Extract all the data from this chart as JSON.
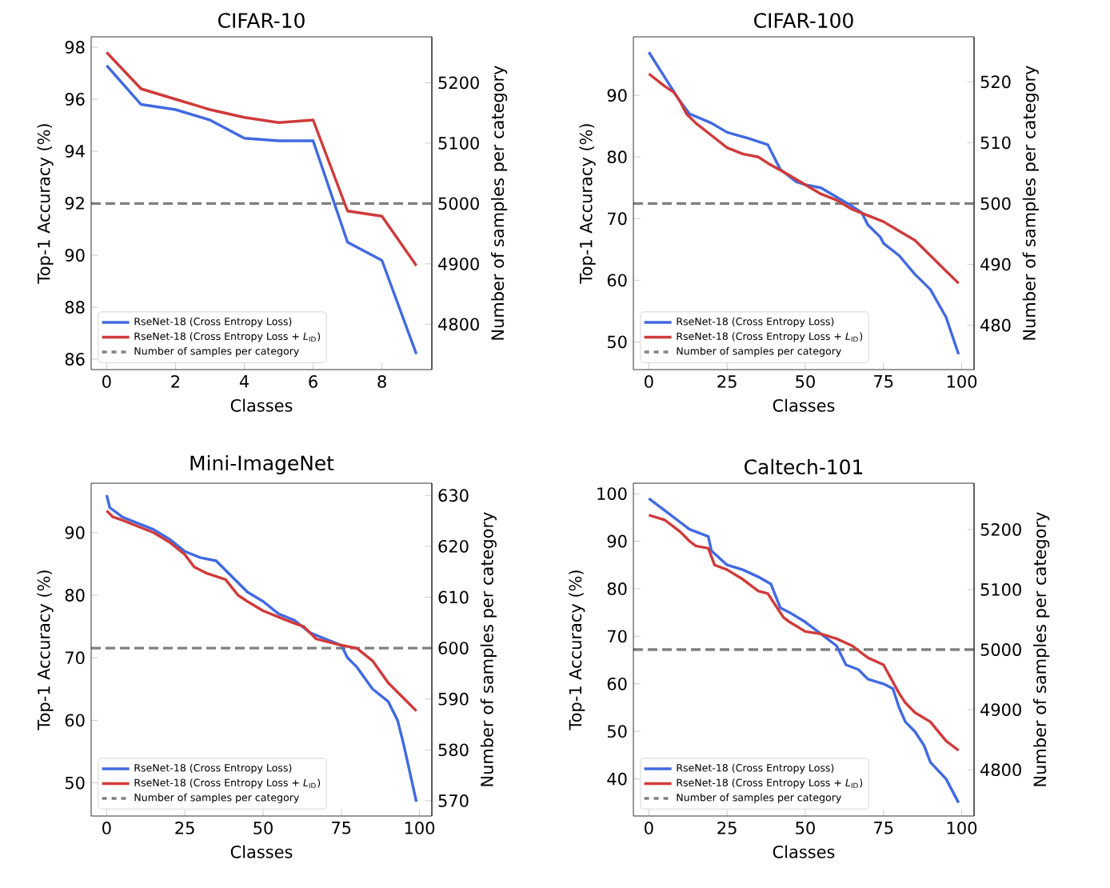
{
  "chart_data": [
    {
      "type": "line",
      "title": "CIFAR-10",
      "xlabel": "Classes",
      "ylabel": "Top-1 Accuracy (%)",
      "y2label": "Number of samples per category",
      "legend": "bottom left",
      "line_style": "solid",
      "xlim": [
        -0.45,
        9.45
      ],
      "xticks": [
        0,
        2,
        4,
        6,
        8
      ],
      "ylim": [
        85.6,
        98.4
      ],
      "yticks": [
        86,
        88,
        90,
        92,
        94,
        96,
        98
      ],
      "y2lim": [
        4725,
        5276
      ],
      "y2ticks": [
        4800,
        4900,
        5000,
        5100,
        5200
      ],
      "series": [
        {
          "name": "RseNet-18 (Cross Entropy Loss)",
          "color": "#4169e1",
          "x": [
            0,
            1,
            2,
            3,
            4,
            5,
            6,
            7,
            8,
            9
          ],
          "values": [
            97.3,
            95.8,
            95.6,
            95.2,
            94.5,
            94.4,
            94.4,
            90.5,
            89.8,
            86.2
          ]
        },
        {
          "name": "RseNet-18 (Cross Entropy Loss + *L*$_{ID}$)",
          "color": "#d03a3a",
          "x": [
            0,
            1,
            2,
            3,
            4,
            5,
            6,
            7,
            8,
            9
          ],
          "values": [
            97.8,
            96.4,
            96.0,
            95.6,
            95.3,
            95.1,
            95.2,
            91.7,
            91.5,
            89.6
          ]
        }
      ],
      "ref_lines": [
        {
          "axis": "y2",
          "value": 5000,
          "label": "Number of samples per category",
          "color": "#808080",
          "line_style": "dashed"
        }
      ]
    },
    {
      "type": "line",
      "title": "CIFAR-100",
      "xlabel": "Classes",
      "ylabel": "Top-1 Accuracy (%)",
      "y2label": "Number of samples per category",
      "legend": "bottom left",
      "line_style": "solid",
      "xlim": [
        -4.95,
        103.95
      ],
      "xticks": [
        0,
        25,
        50,
        75,
        100
      ],
      "ylim": [
        45.5,
        99.5
      ],
      "yticks": [
        50,
        60,
        70,
        80,
        90
      ],
      "y2lim": [
        472.7,
        527.4
      ],
      "y2ticks": [
        480,
        490,
        500,
        510,
        520
      ],
      "series": [
        {
          "name": "RseNet-18 (Cross Entropy Loss)",
          "color": "#4169e1",
          "x": [
            0,
            5,
            10,
            13,
            20,
            25,
            32,
            38,
            42,
            47,
            50,
            55,
            60,
            65,
            68,
            70,
            74,
            75,
            80,
            85,
            90,
            95,
            99
          ],
          "values": [
            97,
            93,
            89,
            87,
            85.5,
            84,
            83,
            82,
            78,
            76,
            75.5,
            75,
            73.5,
            72,
            71,
            69,
            67,
            66,
            64,
            61,
            58.5,
            54,
            48
          ]
        },
        {
          "name": "RseNet-18 (Cross Entropy Loss + *L*$_{ID}$)",
          "color": "#d03a3a",
          "x": [
            0,
            5,
            8,
            10,
            12,
            15,
            20,
            25,
            30,
            35,
            38,
            45,
            50,
            55,
            60,
            65,
            70,
            75,
            80,
            85,
            88,
            92,
            95,
            99
          ],
          "values": [
            93.5,
            91.5,
            90.5,
            89,
            87,
            85.5,
            83.5,
            81.5,
            80.5,
            80,
            79,
            77,
            75.5,
            74,
            73,
            71.5,
            70.5,
            69.5,
            68,
            66.5,
            65,
            63,
            61.5,
            59.5
          ]
        }
      ],
      "ref_lines": [
        {
          "axis": "y2",
          "value": 500,
          "label": "Number of samples per category",
          "color": "#808080",
          "line_style": "dashed"
        }
      ]
    },
    {
      "type": "line",
      "title": "Mini-ImageNet",
      "xlabel": "Classes",
      "ylabel": "Top-1 Accuracy (%)",
      "y2label": "Number of samples per category",
      "legend": "bottom left",
      "line_style": "solid",
      "xlim": [
        -4.95,
        103.95
      ],
      "xticks": [
        0,
        25,
        50,
        75,
        100
      ],
      "ylim": [
        44.7,
        97.9
      ],
      "yticks": [
        50,
        60,
        70,
        80,
        90
      ],
      "y2lim": [
        567,
        632.4
      ],
      "y2ticks": [
        570,
        580,
        590,
        600,
        610,
        620,
        630
      ],
      "series": [
        {
          "name": "RseNet-18 (Cross Entropy Loss)",
          "color": "#4169e1",
          "x": [
            0,
            1,
            5,
            10,
            15,
            20,
            25,
            30,
            35,
            40,
            45,
            50,
            55,
            60,
            65,
            70,
            75,
            77,
            80,
            85,
            90,
            93,
            95,
            99
          ],
          "values": [
            96,
            94,
            92.5,
            91.5,
            90.5,
            89,
            87,
            86,
            85.5,
            83,
            80.5,
            79,
            77,
            76,
            74,
            73,
            72,
            70,
            68.5,
            65,
            63,
            60,
            56,
            47
          ]
        },
        {
          "name": "RseNet-18 (Cross Entropy Loss + *L*$_{ID}$)",
          "color": "#d03a3a",
          "x": [
            0,
            2,
            5,
            10,
            15,
            20,
            25,
            28,
            32,
            38,
            42,
            45,
            50,
            55,
            60,
            63,
            67,
            75,
            80,
            85,
            90,
            95,
            99
          ],
          "values": [
            93.5,
            92.5,
            92,
            91,
            90,
            88.5,
            86.5,
            84.5,
            83.5,
            82.5,
            80,
            79,
            77.5,
            76.5,
            75.5,
            75,
            73,
            72,
            71.5,
            69.5,
            66,
            63.5,
            61.5
          ]
        }
      ],
      "ref_lines": [
        {
          "axis": "y2",
          "value": 600,
          "label": "Number of samples per category",
          "color": "#808080",
          "line_style": "dashed"
        }
      ]
    },
    {
      "type": "line",
      "title": "Caltech-101",
      "xlabel": "Classes",
      "ylabel": "Top-1 Accuracy (%)",
      "y2label": "Number of samples per category",
      "legend": "bottom left",
      "line_style": "solid",
      "xlim": [
        -4.95,
        103.95
      ],
      "xticks": [
        0,
        25,
        50,
        75,
        100
      ],
      "ylim": [
        32.2,
        102.2
      ],
      "yticks": [
        40,
        50,
        60,
        70,
        80,
        90,
        100
      ],
      "y2lim": [
        4723,
        5277
      ],
      "y2ticks": [
        4800,
        4900,
        5000,
        5100,
        5200
      ],
      "series": [
        {
          "name": "RseNet-18 (Cross Entropy Loss)",
          "color": "#4169e1",
          "x": [
            0,
            5,
            10,
            13,
            19,
            20,
            25,
            30,
            35,
            39,
            42,
            45,
            50,
            55,
            60,
            63,
            67,
            70,
            75,
            78,
            80,
            82,
            85,
            88,
            90,
            95,
            99
          ],
          "values": [
            99,
            96.5,
            94,
            92.5,
            91,
            88,
            85,
            84,
            82.5,
            81,
            76,
            75,
            73,
            70.5,
            68,
            64,
            63,
            61,
            60,
            59,
            55,
            52,
            50,
            47,
            43.5,
            40,
            35
          ]
        },
        {
          "name": "RseNet-18 (Cross Entropy Loss + *L*$_{ID}$)",
          "color": "#d03a3a",
          "x": [
            0,
            5,
            10,
            13,
            15,
            19,
            21,
            25,
            30,
            35,
            38,
            40,
            43,
            45,
            50,
            55,
            60,
            65,
            70,
            75,
            80,
            82,
            85,
            90,
            95,
            99
          ],
          "values": [
            95.5,
            94.5,
            92,
            90,
            89,
            88.5,
            85,
            84,
            82,
            79.5,
            79,
            77,
            74,
            73,
            71,
            70.5,
            69.5,
            68,
            65.5,
            64,
            58,
            56,
            54,
            52,
            48,
            46
          ]
        }
      ],
      "ref_lines": [
        {
          "axis": "y2",
          "value": 5000,
          "label": "Number of samples per category",
          "color": "#808080",
          "line_style": "dashed"
        }
      ]
    }
  ]
}
